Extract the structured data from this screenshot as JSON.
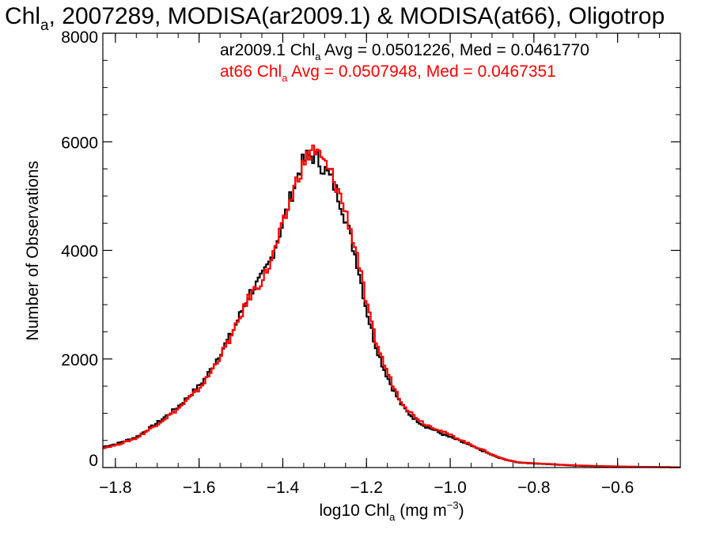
{
  "chart_data": {
    "type": "histogram-step",
    "title": {
      "parts": [
        {
          "text": "Chl"
        },
        {
          "text": "a",
          "sub": true
        },
        {
          "text": ", 2007289, MODISA(ar2009.1) & MODISA(at66), Oligotrop"
        }
      ]
    },
    "xlabel": {
      "parts": [
        {
          "text": "log10 Chl"
        },
        {
          "text": "a",
          "sub": true
        },
        {
          "text": " (mg m"
        },
        {
          "text": "−3",
          "sup": true
        },
        {
          "text": ")"
        }
      ]
    },
    "ylabel": "Number of Observations",
    "xlim": [
      -1.83,
      -0.45
    ],
    "ylim": [
      0,
      8000
    ],
    "x_ticks": [
      -1.8,
      -1.6,
      -1.4,
      -1.2,
      -1.0,
      -0.8,
      -0.6
    ],
    "x_tick_labels": [
      "−1.8",
      "−1.6",
      "−1.4",
      "−1.2",
      "−1.0",
      "−0.8",
      "−0.6"
    ],
    "y_ticks": [
      0,
      2000,
      4000,
      6000,
      8000
    ],
    "y_tick_labels": [
      "0",
      "2000",
      "4000",
      "6000",
      "8000"
    ],
    "grid": false,
    "annotations": [
      {
        "color": "#000000",
        "parts": [
          {
            "text": "ar2009.1 Chl"
          },
          {
            "text": "a",
            "sub": true
          },
          {
            "text": " Avg = 0.0501226, Med = 0.0461770"
          }
        ]
      },
      {
        "color": "#ff0000",
        "parts": [
          {
            "text": "at66 Chl"
          },
          {
            "text": "a",
            "sub": true
          },
          {
            "text": " Avg = 0.0507948, Med = 0.0467351"
          }
        ]
      }
    ],
    "series": [
      {
        "color": "#000000",
        "x": [
          -1.83,
          -1.8,
          -1.75,
          -1.7,
          -1.65,
          -1.6,
          -1.58,
          -1.55,
          -1.52,
          -1.5,
          -1.48,
          -1.45,
          -1.43,
          -1.4,
          -1.38,
          -1.36,
          -1.345,
          -1.33,
          -1.32,
          -1.3,
          -1.28,
          -1.26,
          -1.24,
          -1.22,
          -1.2,
          -1.18,
          -1.16,
          -1.14,
          -1.12,
          -1.1,
          -1.08,
          -1.06,
          -1.04,
          -1.02,
          -1.0,
          -0.98,
          -0.95,
          -0.92,
          -0.9,
          -0.88,
          -0.86,
          -0.84,
          -0.8,
          -0.75,
          -0.7,
          -0.65,
          -0.6,
          -0.55,
          -0.5,
          -0.45
        ],
        "values": [
          380,
          430,
          560,
          820,
          1120,
          1500,
          1700,
          2100,
          2500,
          2850,
          3200,
          3500,
          3800,
          4500,
          5000,
          5500,
          5700,
          5750,
          5700,
          5500,
          5250,
          4850,
          4300,
          3700,
          2900,
          2300,
          1850,
          1500,
          1200,
          1000,
          870,
          760,
          700,
          620,
          560,
          500,
          400,
          300,
          230,
          170,
          130,
          95,
          75,
          55,
          35,
          25,
          18,
          12,
          8,
          5
        ]
      },
      {
        "color": "#ff0000",
        "x": [
          -1.83,
          -1.8,
          -1.75,
          -1.7,
          -1.65,
          -1.6,
          -1.58,
          -1.55,
          -1.52,
          -1.5,
          -1.48,
          -1.45,
          -1.43,
          -1.4,
          -1.38,
          -1.36,
          -1.345,
          -1.33,
          -1.32,
          -1.3,
          -1.28,
          -1.26,
          -1.24,
          -1.22,
          -1.2,
          -1.18,
          -1.16,
          -1.14,
          -1.12,
          -1.1,
          -1.08,
          -1.06,
          -1.04,
          -1.02,
          -1.0,
          -0.98,
          -0.95,
          -0.92,
          -0.9,
          -0.88,
          -0.86,
          -0.84,
          -0.8,
          -0.75,
          -0.7,
          -0.65,
          -0.6,
          -0.55,
          -0.5,
          -0.45
        ],
        "values": [
          360,
          410,
          540,
          800,
          1080,
          1450,
          1650,
          2050,
          2450,
          2800,
          3150,
          3450,
          3750,
          4450,
          4950,
          5450,
          5650,
          5900,
          5800,
          5600,
          5350,
          4950,
          4450,
          3850,
          3000,
          2400,
          1950,
          1580,
          1260,
          1050,
          920,
          800,
          740,
          670,
          600,
          530,
          420,
          320,
          240,
          180,
          135,
          100,
          80,
          60,
          40,
          30,
          20,
          14,
          10,
          6
        ]
      }
    ]
  }
}
